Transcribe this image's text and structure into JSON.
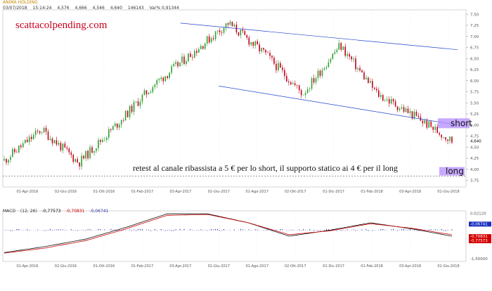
{
  "header": {
    "title": "ANIMA HOLDING",
    "date": "03/07/2018",
    "time": "15:14:24",
    "open": "4,576",
    "high": "4,666",
    "low": "4,546",
    "last": "4,640",
    "volume": "146143",
    "var": "Var% 0,91344"
  },
  "watermark": "scattacolpending.com",
  "annotation": "retest al canale ribassista a 5 € per lo short, il supporto statico ai 4 € per il long",
  "labels": {
    "short": "short",
    "long": "long"
  },
  "colors": {
    "up": "#2e9e2e",
    "down": "#c0001a",
    "channel": "#2244cc",
    "support": "#333333",
    "box": "#b48cff",
    "macd": "#111111",
    "signal": "#cc0000",
    "hist": "#3333aa"
  },
  "chart_data": [
    {
      "type": "line",
      "title": "ANIMA HOLDING",
      "series_kind": "candlestick",
      "x_ticks": [
        "01-Apr-2016",
        "02-Giu-2016",
        "01-Ott-2016",
        "01-Feb-2017",
        "03-Apr-2017",
        "01-Giu-2017",
        "01-Ago-2017",
        "02-Ott-2017",
        "01-Dic-2017",
        "01-Feb-2018",
        "03-Apr-2018",
        "01-Giu-2018"
      ],
      "y_ticks": [
        "7,50",
        "7,25",
        "7,00",
        "6,75",
        "6,50",
        "6,25",
        "6,00",
        "5,75",
        "5,50",
        "5,25",
        "5,00",
        "4,75",
        "4,50",
        "4,25",
        "4,00",
        "3,75"
      ],
      "ylim": [
        3.6,
        7.6
      ],
      "last_value_label": "4,640",
      "series": [
        {
          "x": [
            "01-Apr-2016",
            "02-Giu-2016",
            "01-Ott-2016",
            "01-Feb-2017",
            "03-Apr-2017",
            "01-Giu-2017",
            "01-Ago-2017",
            "02-Ott-2017",
            "01-Dic-2017",
            "01-Feb-2018",
            "03-Apr-2018",
            "01-Giu-2018",
            "03-Jul-2018"
          ],
          "y": [
            4.2,
            4.9,
            4.15,
            5.0,
            5.9,
            6.6,
            7.3,
            6.6,
            5.7,
            6.8,
            5.7,
            5.2,
            4.64
          ]
        }
      ],
      "channel_upper": {
        "from": [
          "03-Apr-2017",
          7.3
        ],
        "to": [
          "03-Jul-2018",
          6.7
        ]
      },
      "channel_lower": {
        "from": [
          "01-Giu-2017",
          5.88
        ],
        "to": [
          "03-Jul-2018",
          5.0
        ]
      },
      "support_level": 3.85
    },
    {
      "type": "line",
      "title": "MACD",
      "params": "(12, 26)",
      "macd_value": "-0,77573",
      "signal_value": "-0,70831",
      "hist_value": "-0,06741",
      "y_ticks": [
        "0,02120",
        "-1,50000"
      ],
      "value_labels": [
        "-0,06741",
        "-0,70831",
        "-0,77573"
      ],
      "x_ticks": [
        "01-Apr-2016",
        "02-Giu-2016",
        "01-Ott-2016",
        "01-Feb-2017",
        "03-Apr-2017",
        "01-Giu-2017",
        "01-Ago-2017",
        "02-Ott-2017",
        "01-Dic-2017",
        "01-Feb-2018",
        "03-Apr-2018",
        "01-Giu-2018"
      ],
      "series": [
        {
          "name": "MACD",
          "y": [
            -1.3,
            -1.1,
            -0.85,
            -0.45,
            0.0,
            0.0,
            -0.3,
            -0.75,
            -0.55,
            -0.3,
            -0.5,
            -0.75
          ]
        },
        {
          "name": "Signal",
          "y": [
            -1.32,
            -1.15,
            -0.9,
            -0.5,
            -0.05,
            -0.02,
            -0.3,
            -0.7,
            -0.57,
            -0.33,
            -0.48,
            -0.7
          ]
        }
      ]
    }
  ]
}
